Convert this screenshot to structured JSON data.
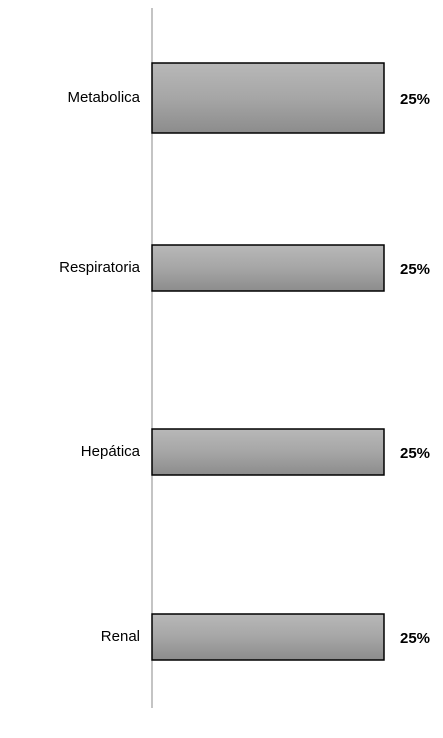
{
  "chart_data": {
    "type": "barh",
    "categories": [
      "Metabolica",
      "Respiratoria",
      "Hepática",
      "Renal"
    ],
    "values": [
      25,
      25,
      25,
      25
    ],
    "value_labels": [
      "25%",
      "25%",
      "25%",
      "25%"
    ],
    "xlim": [
      0,
      25
    ]
  }
}
